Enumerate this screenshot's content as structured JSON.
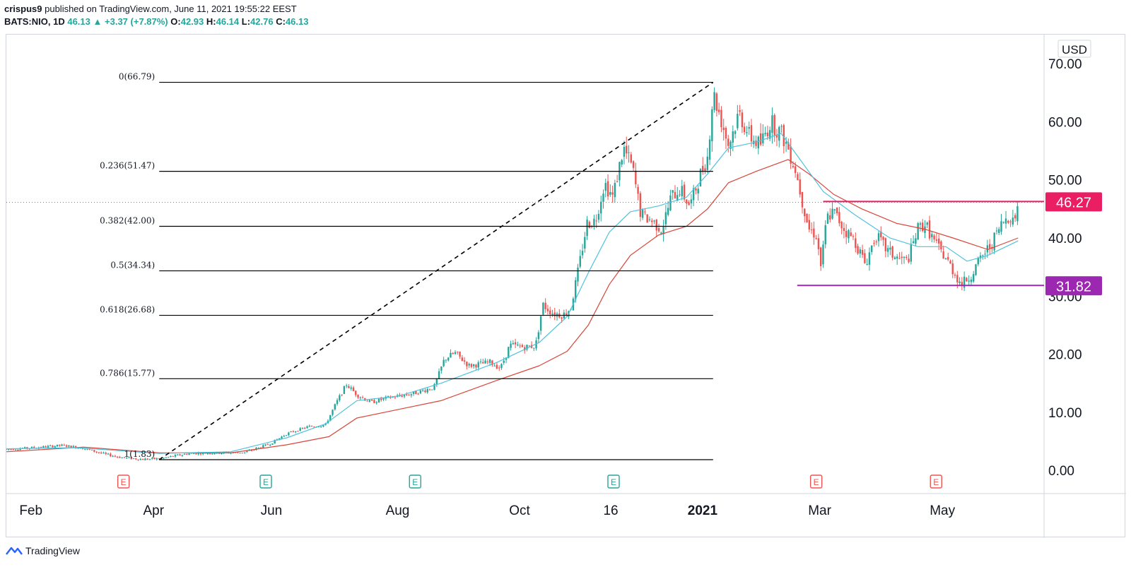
{
  "header": {
    "line1_author": "crispus9",
    "line1_rest": "published on TradingView.com, June 11, 2021 19:55:22 EEST",
    "symbol": "BATS:NIO, 1D",
    "last": "46.13",
    "arrow": "▲",
    "change": "+3.37 (+7.87%)",
    "o_label": "O:",
    "o_val": "42.93",
    "h_label": "H:",
    "h_val": "46.14",
    "l_label": "L:",
    "l_val": "42.76",
    "c_label": "C:",
    "c_val": "46.13"
  },
  "footer": {
    "brand": "TradingView"
  },
  "colors": {
    "up": "#26a69a",
    "down": "#ef5350",
    "ma_fast": "#4fc3dc",
    "ma_slow": "#d9463a",
    "resistance": "#e91e63",
    "support": "#9c27b0",
    "fib": "#000000",
    "axis_text": "#131722"
  },
  "chart_data": {
    "type": "candlestick",
    "symbol": "BATS:NIO",
    "interval": "1D",
    "currency_label": "USD",
    "ylim": [
      -4,
      75
    ],
    "y_ticks": [
      "70.00",
      "60.00",
      "50.00",
      "40.00",
      "30.00",
      "20.00",
      "10.00",
      "0.00"
    ],
    "y_tick_values": [
      70,
      60,
      50,
      40,
      30,
      20,
      10,
      0
    ],
    "x_range": [
      0,
      1480
    ],
    "x_ticks": [
      {
        "label": "Feb",
        "pos": 35,
        "bold": false
      },
      {
        "label": "Apr",
        "pos": 210,
        "bold": false
      },
      {
        "label": "Jun",
        "pos": 378,
        "bold": false
      },
      {
        "label": "Aug",
        "pos": 558,
        "bold": false
      },
      {
        "label": "Oct",
        "pos": 732,
        "bold": false
      },
      {
        "label": "16",
        "pos": 862,
        "bold": false
      },
      {
        "label": "2021",
        "pos": 993,
        "bold": true
      },
      {
        "label": "Mar",
        "pos": 1160,
        "bold": false
      },
      {
        "label": "May",
        "pos": 1335,
        "bold": false
      }
    ],
    "earnings_markers": [
      {
        "label": "E",
        "pos": 167,
        "kind": "down"
      },
      {
        "label": "E",
        "pos": 370,
        "kind": "up"
      },
      {
        "label": "E",
        "pos": 583,
        "kind": "up"
      },
      {
        "label": "E",
        "pos": 866,
        "kind": "up"
      },
      {
        "label": "E",
        "pos": 1155,
        "kind": "down"
      },
      {
        "label": "E",
        "pos": 1326,
        "kind": "down"
      }
    ],
    "fib_levels": [
      {
        "label": "0(66.79)",
        "value": 66.79
      },
      {
        "label": "0.236(51.47)",
        "value": 51.47
      },
      {
        "label": "0.382(42.00)",
        "value": 42.0
      },
      {
        "label": "0.5(34.34)",
        "value": 34.34
      },
      {
        "label": "0.618(26.68)",
        "value": 26.68
      },
      {
        "label": "0.786(15.77)",
        "value": 15.77
      },
      {
        "label": "1(1.83)",
        "value": 1.83
      }
    ],
    "fib_x_range": [
      218,
      1008
    ],
    "trendline": {
      "start": [
        218,
        1.83
      ],
      "end": [
        1008,
        66.79
      ]
    },
    "horizontal_lines": [
      {
        "label": "46.27",
        "value": 46.27,
        "x_start": 1165,
        "color": "#e91e63"
      },
      {
        "label": "31.82",
        "value": 31.82,
        "x_start": 1128,
        "color": "#9c27b0"
      }
    ],
    "last_price_line": 46.13,
    "price_path": [
      [
        0,
        3.6
      ],
      [
        40,
        3.9
      ],
      [
        80,
        4.3
      ],
      [
        110,
        3.8
      ],
      [
        140,
        2.8
      ],
      [
        165,
        2.2
      ],
      [
        195,
        1.9
      ],
      [
        218,
        2.0
      ],
      [
        260,
        2.9
      ],
      [
        300,
        3.0
      ],
      [
        340,
        3.1
      ],
      [
        375,
        4.5
      ],
      [
        400,
        6.3
      ],
      [
        430,
        7.5
      ],
      [
        455,
        7.8
      ],
      [
        470,
        11.5
      ],
      [
        485,
        14.8
      ],
      [
        500,
        13.0
      ],
      [
        520,
        11.7
      ],
      [
        545,
        12.5
      ],
      [
        580,
        13.2
      ],
      [
        610,
        14.3
      ],
      [
        625,
        19.2
      ],
      [
        640,
        20.2
      ],
      [
        660,
        18.0
      ],
      [
        690,
        18.6
      ],
      [
        705,
        17.6
      ],
      [
        718,
        21.5
      ],
      [
        740,
        21.2
      ],
      [
        755,
        21.5
      ],
      [
        765,
        28.5
      ],
      [
        780,
        27.0
      ],
      [
        795,
        26.8
      ],
      [
        805,
        28.0
      ],
      [
        815,
        34.0
      ],
      [
        828,
        42.5
      ],
      [
        840,
        43.0
      ],
      [
        853,
        49.5
      ],
      [
        865,
        47.0
      ],
      [
        880,
        55.5
      ],
      [
        893,
        52.0
      ],
      [
        905,
        44.0
      ],
      [
        920,
        43.0
      ],
      [
        935,
        41.5
      ],
      [
        948,
        47.0
      ],
      [
        960,
        48.5
      ],
      [
        975,
        45.5
      ],
      [
        990,
        51.0
      ],
      [
        1000,
        54.0
      ],
      [
        1008,
        65.0
      ],
      [
        1018,
        61.0
      ],
      [
        1030,
        56.0
      ],
      [
        1045,
        61.5
      ],
      [
        1060,
        57.5
      ],
      [
        1075,
        56.0
      ],
      [
        1090,
        60.0
      ],
      [
        1105,
        58.0
      ],
      [
        1115,
        55.5
      ],
      [
        1125,
        52.0
      ],
      [
        1135,
        46.5
      ],
      [
        1145,
        41.5
      ],
      [
        1155,
        40.5
      ],
      [
        1162,
        35.0
      ],
      [
        1170,
        43.5
      ],
      [
        1180,
        44.5
      ],
      [
        1195,
        41.5
      ],
      [
        1210,
        39.5
      ],
      [
        1225,
        35.5
      ],
      [
        1240,
        40.5
      ],
      [
        1255,
        38.0
      ],
      [
        1270,
        36.5
      ],
      [
        1285,
        36.0
      ],
      [
        1300,
        41.5
      ],
      [
        1310,
        42.5
      ],
      [
        1325,
        39.0
      ],
      [
        1340,
        36.5
      ],
      [
        1352,
        34.0
      ],
      [
        1362,
        32.0
      ],
      [
        1375,
        33.5
      ],
      [
        1390,
        36.5
      ],
      [
        1405,
        39.0
      ],
      [
        1420,
        42.5
      ],
      [
        1430,
        44.0
      ],
      [
        1437,
        42.8
      ],
      [
        1443,
        46.13
      ]
    ],
    "ma_fast_path": [
      [
        0,
        3.7
      ],
      [
        100,
        3.9
      ],
      [
        218,
        2.9
      ],
      [
        320,
        3.2
      ],
      [
        400,
        5.6
      ],
      [
        455,
        8.0
      ],
      [
        500,
        12.0
      ],
      [
        560,
        12.8
      ],
      [
        620,
        15.0
      ],
      [
        700,
        18.6
      ],
      [
        760,
        22.0
      ],
      [
        800,
        26.5
      ],
      [
        830,
        34.0
      ],
      [
        860,
        41.0
      ],
      [
        890,
        44.5
      ],
      [
        930,
        45.5
      ],
      [
        970,
        47.0
      ],
      [
        1000,
        51.0
      ],
      [
        1030,
        55.5
      ],
      [
        1070,
        56.5
      ],
      [
        1105,
        58.0
      ],
      [
        1135,
        53.0
      ],
      [
        1165,
        48.0
      ],
      [
        1210,
        44.0
      ],
      [
        1260,
        40.0
      ],
      [
        1300,
        38.5
      ],
      [
        1340,
        38.5
      ],
      [
        1370,
        36.0
      ],
      [
        1400,
        37.0
      ],
      [
        1443,
        39.5
      ]
    ],
    "ma_slow_path": [
      [
        0,
        3.2
      ],
      [
        110,
        4.0
      ],
      [
        218,
        3.0
      ],
      [
        320,
        3.0
      ],
      [
        400,
        4.4
      ],
      [
        460,
        5.8
      ],
      [
        500,
        9.0
      ],
      [
        560,
        10.5
      ],
      [
        620,
        12.0
      ],
      [
        700,
        15.5
      ],
      [
        760,
        18.0
      ],
      [
        800,
        20.5
      ],
      [
        830,
        25.0
      ],
      [
        860,
        32.0
      ],
      [
        890,
        37.0
      ],
      [
        930,
        40.5
      ],
      [
        970,
        42.0
      ],
      [
        1000,
        45.0
      ],
      [
        1030,
        49.5
      ],
      [
        1070,
        51.5
      ],
      [
        1115,
        53.5
      ],
      [
        1145,
        51.0
      ],
      [
        1180,
        47.5
      ],
      [
        1220,
        45.0
      ],
      [
        1270,
        42.5
      ],
      [
        1310,
        41.5
      ],
      [
        1350,
        40.0
      ],
      [
        1400,
        38.0
      ],
      [
        1443,
        40.0
      ]
    ]
  }
}
